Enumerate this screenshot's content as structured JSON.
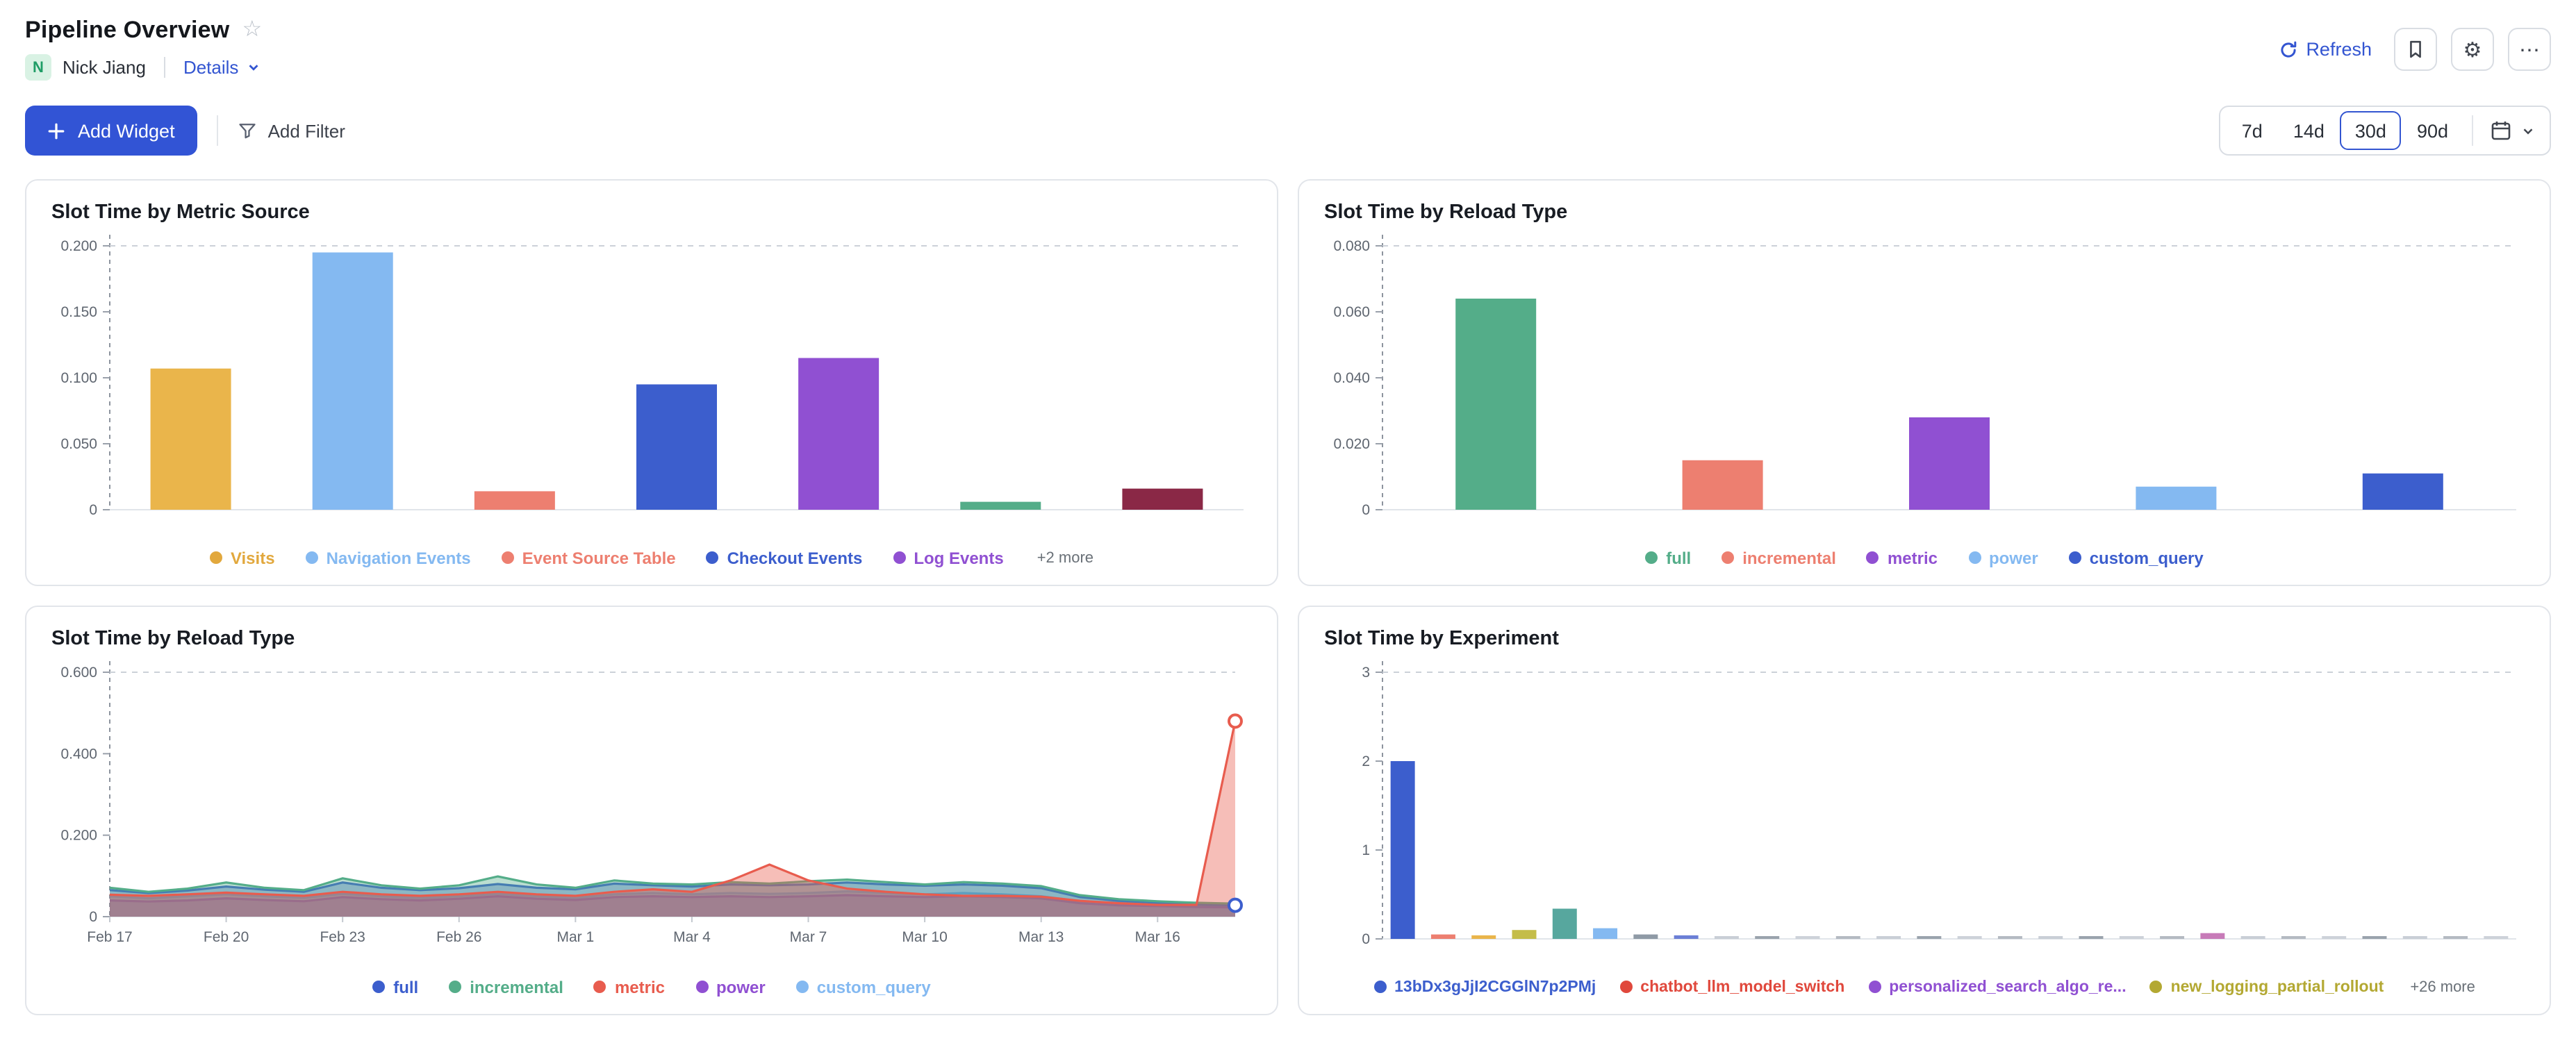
{
  "header": {
    "title": "Pipeline Overview",
    "owner": {
      "initial": "N",
      "name": "Nick Jiang"
    },
    "details_label": "Details",
    "refresh_label": "Refresh"
  },
  "toolbar": {
    "add_widget": "Add Widget",
    "add_filter": "Add Filter",
    "time_ranges": [
      "7d",
      "14d",
      "30d",
      "90d"
    ],
    "selected_range": "30d"
  },
  "colors": {
    "accent_blue": "#3355d1",
    "owner_badge_bg": "#d9f2e4",
    "owner_badge_text": "#1f9d66",
    "panel_border": "#e2e5ea"
  },
  "chart_data": [
    {
      "type": "bar",
      "title": "Slot Time by Metric Source",
      "ylim": [
        0,
        0.2
      ],
      "yticks": [
        {
          "v": 0.2,
          "label": "0.200"
        },
        {
          "v": 0.15,
          "label": "0.150"
        },
        {
          "v": 0.1,
          "label": "0.100"
        },
        {
          "v": 0.05,
          "label": "0.050"
        },
        {
          "v": 0,
          "label": "0"
        }
      ],
      "bars": [
        {
          "value": 0.107,
          "color": "#eab54b"
        },
        {
          "value": 0.195,
          "color": "#84b9f1"
        },
        {
          "value": 0.014,
          "color": "#ed7f70"
        },
        {
          "value": 0.095,
          "color": "#3c5ecd"
        },
        {
          "value": 0.115,
          "color": "#9050d2"
        },
        {
          "value": 0.006,
          "color": "#54ad89"
        },
        {
          "value": 0.016,
          "color": "#8a2846"
        }
      ],
      "legend": [
        {
          "label": "Visits",
          "color": "#e2a83d"
        },
        {
          "label": "Navigation Events",
          "color": "#84b9f1"
        },
        {
          "label": "Event Source Table",
          "color": "#ed7f70"
        },
        {
          "label": "Checkout Events",
          "color": "#3c5ecd"
        },
        {
          "label": "Log Events",
          "color": "#9050d2"
        }
      ],
      "legend_more": "+2 more"
    },
    {
      "type": "bar",
      "title": "Slot Time by Reload Type",
      "ylim": [
        0,
        0.08
      ],
      "yticks": [
        {
          "v": 0.08,
          "label": "0.080"
        },
        {
          "v": 0.06,
          "label": "0.060"
        },
        {
          "v": 0.04,
          "label": "0.040"
        },
        {
          "v": 0.02,
          "label": "0.020"
        },
        {
          "v": 0,
          "label": "0"
        }
      ],
      "bars": [
        {
          "value": 0.064,
          "color": "#54ad89"
        },
        {
          "value": 0.015,
          "color": "#ed7f70"
        },
        {
          "value": 0.028,
          "color": "#9050d2"
        },
        {
          "value": 0.007,
          "color": "#84b9f1"
        },
        {
          "value": 0.011,
          "color": "#3c5ecd"
        }
      ],
      "legend": [
        {
          "label": "full",
          "color": "#54ad89"
        },
        {
          "label": "incremental",
          "color": "#ed7f70"
        },
        {
          "label": "metric",
          "color": "#9050d2"
        },
        {
          "label": "power",
          "color": "#84b9f1"
        },
        {
          "label": "custom_query",
          "color": "#3c5ecd"
        }
      ]
    },
    {
      "type": "area",
      "title": "Slot Time by Reload Type",
      "ylim": [
        0,
        0.6
      ],
      "yticks": [
        {
          "v": 0.6,
          "label": "0.600"
        },
        {
          "v": 0.4,
          "label": "0.400"
        },
        {
          "v": 0.2,
          "label": "0.200"
        },
        {
          "v": 0,
          "label": "0"
        }
      ],
      "points": 30,
      "x_ticks": [
        {
          "i": 0,
          "label": "Feb 17"
        },
        {
          "i": 3,
          "label": "Feb 20"
        },
        {
          "i": 6,
          "label": "Feb 23"
        },
        {
          "i": 9,
          "label": "Feb 26"
        },
        {
          "i": 12,
          "label": "Mar 1"
        },
        {
          "i": 15,
          "label": "Mar 4"
        },
        {
          "i": 18,
          "label": "Mar 7"
        },
        {
          "i": 21,
          "label": "Mar 10"
        },
        {
          "i": 24,
          "label": "Mar 13"
        },
        {
          "i": 27,
          "label": "Mar 16"
        }
      ],
      "series": [
        {
          "name": "custom_query",
          "color": "#84b9f1",
          "values": [
            0.05,
            0.045,
            0.05,
            0.055,
            0.05,
            0.046,
            0.056,
            0.05,
            0.046,
            0.05,
            0.056,
            0.05,
            0.046,
            0.055,
            0.058,
            0.055,
            0.058,
            0.056,
            0.058,
            0.062,
            0.058,
            0.055,
            0.058,
            0.055,
            0.05,
            0.038,
            0.034,
            0.03,
            0.028,
            0.028
          ]
        },
        {
          "name": "power",
          "color": "#9050d2",
          "values": [
            0.04,
            0.037,
            0.04,
            0.045,
            0.041,
            0.038,
            0.048,
            0.043,
            0.04,
            0.044,
            0.05,
            0.044,
            0.041,
            0.048,
            0.05,
            0.048,
            0.05,
            0.048,
            0.05,
            0.053,
            0.05,
            0.048,
            0.05,
            0.048,
            0.045,
            0.033,
            0.028,
            0.026,
            0.024,
            0.023
          ]
        },
        {
          "name": "full",
          "color": "#3c5ecd",
          "values": [
            0.065,
            0.058,
            0.064,
            0.074,
            0.066,
            0.061,
            0.084,
            0.071,
            0.065,
            0.07,
            0.08,
            0.071,
            0.067,
            0.081,
            0.077,
            0.074,
            0.079,
            0.077,
            0.079,
            0.084,
            0.079,
            0.076,
            0.079,
            0.076,
            0.07,
            0.048,
            0.039,
            0.034,
            0.03,
            0.028
          ]
        },
        {
          "name": "incremental",
          "color": "#54ad89",
          "values": [
            0.071,
            0.061,
            0.069,
            0.084,
            0.071,
            0.065,
            0.094,
            0.077,
            0.069,
            0.077,
            0.099,
            0.079,
            0.071,
            0.089,
            0.081,
            0.079,
            0.085,
            0.081,
            0.087,
            0.091,
            0.085,
            0.079,
            0.085,
            0.081,
            0.075,
            0.053,
            0.043,
            0.038,
            0.034,
            0.032
          ]
        },
        {
          "name": "metric",
          "color": "#e85c4e",
          "values": [
            0.054,
            0.051,
            0.055,
            0.059,
            0.055,
            0.051,
            0.061,
            0.055,
            0.051,
            0.055,
            0.061,
            0.055,
            0.051,
            0.061,
            0.067,
            0.061,
            0.089,
            0.128,
            0.089,
            0.069,
            0.061,
            0.055,
            0.051,
            0.051,
            0.049,
            0.039,
            0.033,
            0.029,
            0.029,
            0.48
          ]
        }
      ],
      "markers": [
        "metric",
        "full"
      ],
      "legend": [
        {
          "label": "full",
          "color": "#3c5ecd"
        },
        {
          "label": "incremental",
          "color": "#54ad89"
        },
        {
          "label": "metric",
          "color": "#e85c4e"
        },
        {
          "label": "power",
          "color": "#9050d2"
        },
        {
          "label": "custom_query",
          "color": "#84b9f1"
        }
      ]
    },
    {
      "type": "bar",
      "title": "Slot Time by Experiment",
      "ylim": [
        0,
        3
      ],
      "yticks": [
        {
          "v": 3,
          "label": "3"
        },
        {
          "v": 2,
          "label": "2"
        },
        {
          "v": 1,
          "label": "1"
        },
        {
          "v": 0,
          "label": "0"
        }
      ],
      "bars": [
        {
          "value": 2,
          "color": "#3c5ecd"
        },
        {
          "value": 0.05,
          "color": "#ed7f70"
        },
        {
          "value": 0.04,
          "color": "#eab54b"
        },
        {
          "value": 0.1,
          "color": "#c4bd4a"
        },
        {
          "value": 0.34,
          "color": "#57a79e"
        },
        {
          "value": 0.12,
          "color": "#84b9f1"
        },
        {
          "value": 0.05,
          "color": "#8f9aa6"
        },
        {
          "value": 0.04,
          "color": "#6b7fd6"
        },
        {
          "value": 0.02,
          "color": "#c9ced6"
        },
        {
          "value": 0.03,
          "color": "#9aa3ad"
        },
        {
          "value": 0.02,
          "color": "#cdd2d9"
        },
        {
          "value": 0.015,
          "color": "#b4bac2"
        },
        {
          "value": 0.02,
          "color": "#c9ced6"
        },
        {
          "value": 0.01,
          "color": "#9aa3ad"
        },
        {
          "value": 0.02,
          "color": "#cdd2d9"
        },
        {
          "value": 0.015,
          "color": "#b4bac2"
        },
        {
          "value": 0.01,
          "color": "#c9ced6"
        },
        {
          "value": 0.02,
          "color": "#9aa3ad"
        },
        {
          "value": 0.01,
          "color": "#cdd2d9"
        },
        {
          "value": 0.015,
          "color": "#b4bac2"
        },
        {
          "value": 0.065,
          "color": "#c77bb8"
        },
        {
          "value": 0.015,
          "color": "#c9ced6"
        },
        {
          "value": 0.02,
          "color": "#b4bac2"
        },
        {
          "value": 0.01,
          "color": "#cdd2d9"
        },
        {
          "value": 0.02,
          "color": "#9aa3ad"
        },
        {
          "value": 0.01,
          "color": "#c9ced6"
        },
        {
          "value": 0.015,
          "color": "#b4bac2"
        },
        {
          "value": 0.01,
          "color": "#cdd2d9"
        }
      ],
      "legend": [
        {
          "label": "13bDx3gJjI2CGGlN7p2PMj",
          "color": "#3c5ecd"
        },
        {
          "label": "chatbot_llm_model_switch",
          "color": "#e0483c"
        },
        {
          "label": "personalized_search_algo_re...",
          "color": "#9050d2"
        },
        {
          "label": "new_logging_partial_rollout",
          "color": "#b3a832"
        }
      ],
      "legend_more": "+26 more"
    }
  ]
}
